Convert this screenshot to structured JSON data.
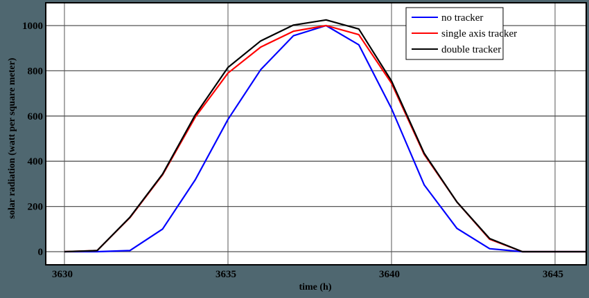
{
  "chart_data": {
    "type": "line",
    "title": "",
    "xlabel": "time (h)",
    "ylabel": "solar radiation (watt per square meter)",
    "xlim": [
      3629.4,
      3645.9
    ],
    "ylim": [
      -50,
      1085
    ],
    "xticks": [
      3630,
      3635,
      3640,
      3645
    ],
    "yticks": [
      0,
      200,
      400,
      600,
      800,
      1000
    ],
    "grid": true,
    "legend_position": "upper right",
    "x": [
      3630,
      3631,
      3632,
      3633,
      3634,
      3635,
      3636,
      3637,
      3638,
      3639,
      3640,
      3641,
      3642,
      3643,
      3644,
      3645,
      3646
    ],
    "series": [
      {
        "name": "no tracker",
        "color": "#0000ff",
        "values": [
          0,
          0,
          5,
          100,
          318,
          585,
          805,
          955,
          1000,
          915,
          633,
          295,
          103,
          13,
          0,
          0,
          0
        ]
      },
      {
        "name": "single axis tracker",
        "color": "#ff0000",
        "values": [
          0,
          5,
          150,
          340,
          595,
          790,
          905,
          975,
          1000,
          960,
          745,
          430,
          220,
          55,
          0,
          0,
          0
        ]
      },
      {
        "name": "double tracker",
        "color": "#000000",
        "values": [
          0,
          5,
          152,
          343,
          605,
          815,
          932,
          1002,
          1025,
          985,
          755,
          435,
          220,
          58,
          0,
          0,
          0
        ]
      }
    ]
  },
  "legend": {
    "items": [
      {
        "label": "no tracker",
        "color": "#0000ff"
      },
      {
        "label": "single axis tracker",
        "color": "#ff0000"
      },
      {
        "label": "double tracker",
        "color": "#000000"
      }
    ]
  }
}
